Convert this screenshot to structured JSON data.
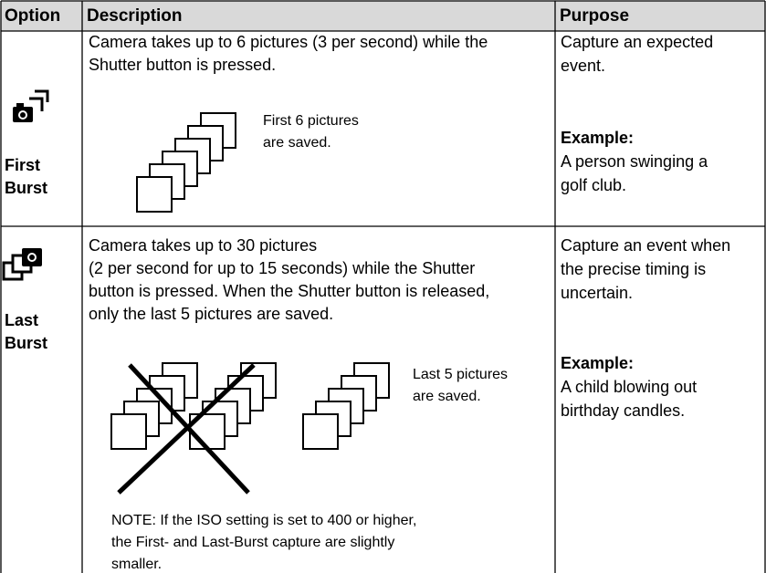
{
  "table": {
    "header": [
      "Option",
      "Description",
      "Purpose"
    ],
    "rows": [
      {
        "option": [
          "First",
          "Burst"
        ],
        "description": [
          "Camera takes up to 6 pictures (3 per second) while the",
          "Shutter button is pressed."
        ],
        "caption": [
          "First 6 pictures",
          "are saved."
        ],
        "purpose": [
          "Capture an expected",
          "event."
        ],
        "example_label": "Example:",
        "example": [
          "A person swinging a",
          "golf club."
        ]
      },
      {
        "option": [
          "Last",
          "Burst"
        ],
        "description": [
          "Camera takes up to 30 pictures",
          "(2 per second for up to 15 seconds) while the Shutter",
          "button is pressed. When the Shutter button is released,",
          "only the last 5 pictures are saved."
        ],
        "caption": [
          "Last 5 pictures",
          "are saved."
        ],
        "note": [
          "NOTE: If the ISO setting is set to 400 or higher,",
          "the First- and Last-Burst capture are slightly",
          "smaller."
        ],
        "purpose": [
          "Capture an event when",
          "the precise timing is",
          "uncertain."
        ],
        "example_label": "Example:",
        "example": [
          "A child blowing out",
          "birthday candles."
        ]
      }
    ]
  }
}
